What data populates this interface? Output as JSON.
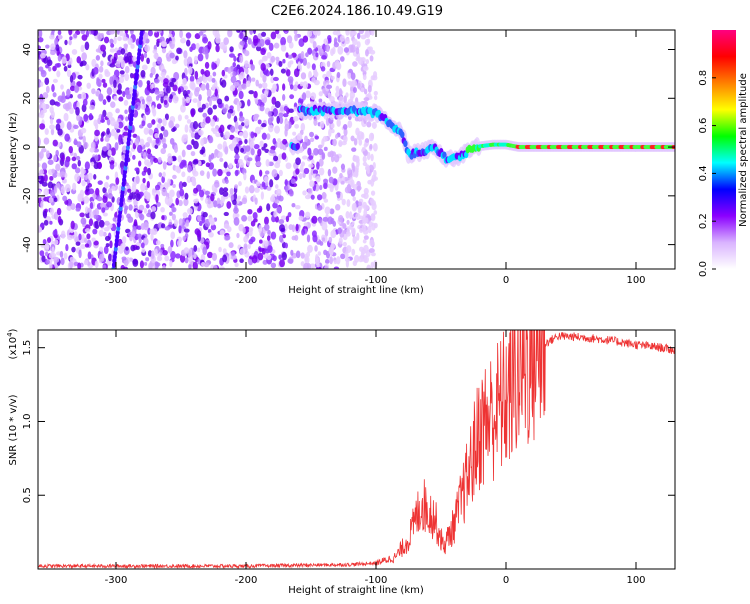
{
  "title": "C2E6.2024.186.10.49.G19",
  "chart_data": [
    {
      "type": "heatmap",
      "xlabel": "Height of straight line (km)",
      "ylabel": "Frequency (Hz)",
      "xlim": [
        -360,
        130
      ],
      "ylim": [
        -50,
        48
      ],
      "xticks": [
        -300,
        -200,
        -100,
        0,
        100
      ],
      "yticks": [
        -40,
        -20,
        0,
        20,
        40
      ],
      "colorbar": {
        "label": "Normalized spectral amplitude",
        "range": [
          0,
          1
        ],
        "ticks": [
          "0.0",
          "0.2",
          "0.4",
          "0.6",
          "0.8"
        ],
        "tick_values": [
          0,
          0.2,
          0.4,
          0.6,
          0.8
        ],
        "colors": [
          "#ffffff",
          "#d9b3ff",
          "#8b00ff",
          "#0000ff",
          "#00ffff",
          "#00ff00",
          "#ffff00",
          "#ff8000",
          "#ff0000",
          "#ff0080"
        ]
      },
      "tone_track": [
        {
          "x": -160,
          "y": 15
        },
        {
          "x": -140,
          "y": 15
        },
        {
          "x": -120,
          "y": 15
        },
        {
          "x": -100,
          "y": 14
        },
        {
          "x": -90,
          "y": 10
        },
        {
          "x": -80,
          "y": 6
        },
        {
          "x": -75,
          "y": -3
        },
        {
          "x": -65,
          "y": -2
        },
        {
          "x": -55,
          "y": 0
        },
        {
          "x": -45,
          "y": -5
        },
        {
          "x": -35,
          "y": -4
        },
        {
          "x": -25,
          "y": 0
        },
        {
          "x": -10,
          "y": 1
        },
        {
          "x": 0,
          "y": 1
        },
        {
          "x": 10,
          "y": 0
        },
        {
          "x": 50,
          "y": 0
        },
        {
          "x": 100,
          "y": 0
        },
        {
          "x": 130,
          "y": 0
        }
      ],
      "noise_region_xlim": [
        -360,
        -100
      ],
      "grid": false,
      "legend": "none"
    },
    {
      "type": "line",
      "xlabel": "Height of straight line (km)",
      "ylabel": "SNR (10 * v/v)",
      "multiplier_label": "(x10",
      "multiplier_exponent": "4",
      "multiplier_suffix": ")",
      "xlim": [
        -360,
        130
      ],
      "ylim": [
        0,
        1.62
      ],
      "xticks": [
        -300,
        -200,
        -100,
        0,
        100
      ],
      "yticks": [
        0.5,
        1.0,
        1.5
      ],
      "ytick_labels": [
        "0.5",
        "1.0",
        "1.5"
      ],
      "color": "#ee3333",
      "series_profile": [
        {
          "x": -360,
          "y": 0.02
        },
        {
          "x": -200,
          "y": 0.02
        },
        {
          "x": -120,
          "y": 0.03
        },
        {
          "x": -100,
          "y": 0.04
        },
        {
          "x": -85,
          "y": 0.08
        },
        {
          "x": -75,
          "y": 0.2
        },
        {
          "x": -65,
          "y": 0.45
        },
        {
          "x": -55,
          "y": 0.35
        },
        {
          "x": -48,
          "y": 0.15
        },
        {
          "x": -40,
          "y": 0.3
        },
        {
          "x": -30,
          "y": 0.6
        },
        {
          "x": -20,
          "y": 0.95
        },
        {
          "x": -10,
          "y": 1.05
        },
        {
          "x": 0,
          "y": 1.15
        },
        {
          "x": 10,
          "y": 1.35
        },
        {
          "x": 25,
          "y": 1.5
        },
        {
          "x": 40,
          "y": 1.58
        },
        {
          "x": 60,
          "y": 1.57
        },
        {
          "x": 80,
          "y": 1.55
        },
        {
          "x": 100,
          "y": 1.52
        },
        {
          "x": 120,
          "y": 1.5
        },
        {
          "x": 130,
          "y": 1.48
        }
      ],
      "grid": false,
      "legend": "none"
    }
  ]
}
